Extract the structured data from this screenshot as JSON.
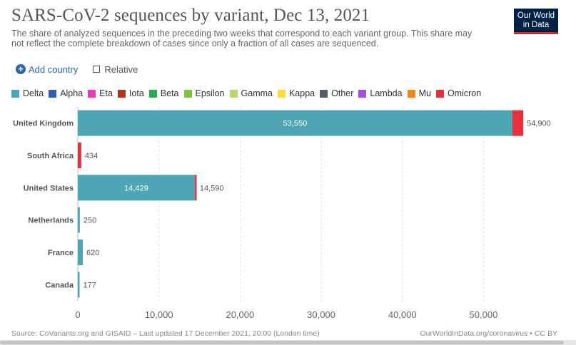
{
  "title": "SARS-CoV-2 sequences by variant, Dec 13, 2021",
  "subtitle": "The share of analyzed sequences in the preceding two weeks that correspond to each variant group. This share may not reflect the complete breakdown of cases since only a fraction of all cases are sequenced.",
  "logo": {
    "line1": "Our World",
    "line2": "in Data"
  },
  "controls": {
    "add_country": "Add country",
    "relative": "Relative"
  },
  "legend": [
    {
      "name": "Delta",
      "color": "#4ea6b4"
    },
    {
      "name": "Alpha",
      "color": "#3360a9"
    },
    {
      "name": "Eta",
      "color": "#e63ab7"
    },
    {
      "name": "Iota",
      "color": "#b0361f"
    },
    {
      "name": "Beta",
      "color": "#2aaa50"
    },
    {
      "name": "Epsilon",
      "color": "#7bc43a"
    },
    {
      "name": "Gamma",
      "color": "#b9d86c"
    },
    {
      "name": "Kappa",
      "color": "#f8dc3c"
    },
    {
      "name": "Other",
      "color": "#555d6a"
    },
    {
      "name": "Lambda",
      "color": "#a04fe0"
    },
    {
      "name": "Mu",
      "color": "#f48523"
    },
    {
      "name": "Omicron",
      "color": "#e5313e"
    }
  ],
  "chart_data": {
    "type": "bar",
    "orientation": "horizontal",
    "stacked": true,
    "categories": [
      "United Kingdom",
      "South Africa",
      "United States",
      "Netherlands",
      "France",
      "Canada"
    ],
    "series": [
      {
        "name": "Delta",
        "color": "#4ea6b4",
        "values": [
          53550,
          0,
          14429,
          250,
          620,
          177
        ]
      },
      {
        "name": "Omicron",
        "color": "#e5313e",
        "values": [
          1350,
          434,
          161,
          0,
          0,
          0
        ]
      }
    ],
    "totals": [
      54900,
      434,
      14590,
      250,
      620,
      177
    ],
    "inner_labels": [
      "53,550",
      "",
      "14,429",
      "",
      "",
      ""
    ],
    "total_labels": [
      "54,900",
      "434",
      "14,590",
      "250",
      "620",
      "177"
    ],
    "xlim": [
      0,
      57000
    ],
    "xticks": [
      0,
      10000,
      20000,
      30000,
      40000,
      50000
    ],
    "xtick_labels": [
      "0",
      "10,000",
      "20,000",
      "30,000",
      "40,000",
      "50,000"
    ],
    "grid": true
  },
  "footer": {
    "source": "Source: CoVariants.org and GISAID – Last updated 17 December 2021, 20:00 (London time)",
    "right": "OurWorldInData.org/coronavirus • CC BY"
  }
}
